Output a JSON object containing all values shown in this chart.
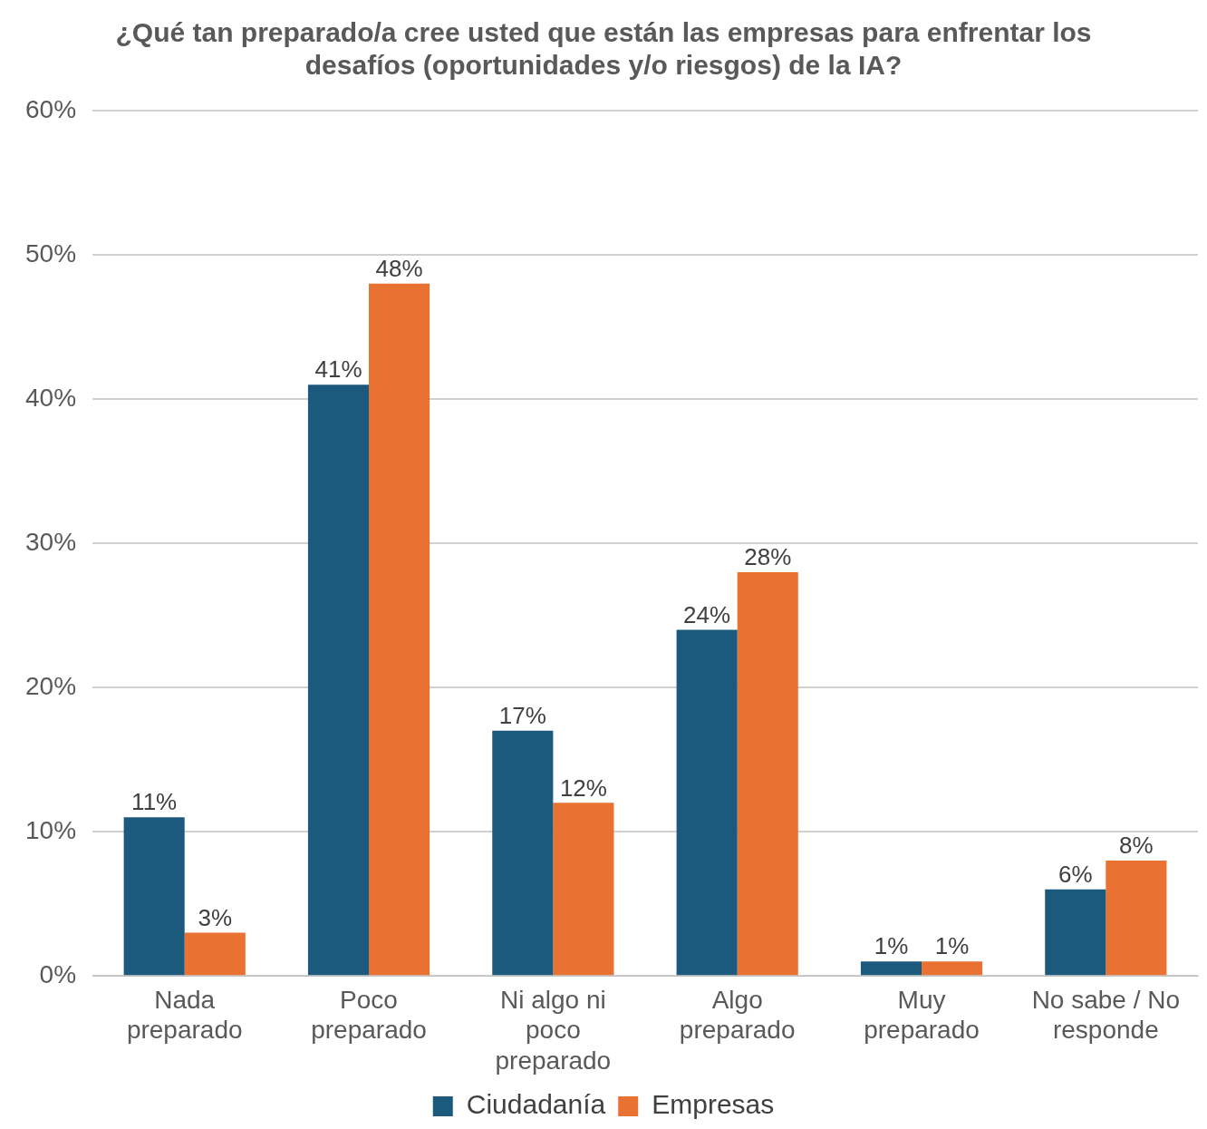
{
  "chart_data": {
    "type": "bar",
    "title": "¿Qué tan preparado/a cree usted que están las empresas para enfrentar los desafíos (oportunidades y/o riesgos) de la IA?",
    "categories": [
      "Nada preparado",
      "Poco preparado",
      "Ni algo ni poco preparado",
      "Algo preparado",
      "Muy preparado",
      "No sabe / No responde"
    ],
    "series": [
      {
        "name": "Ciudadanía",
        "color": "#1b5a7d",
        "values": [
          11,
          41,
          17,
          24,
          1,
          6
        ],
        "value_labels": [
          "11%",
          "41%",
          "17%",
          "24%",
          "1%",
          "6%"
        ]
      },
      {
        "name": "Empresas",
        "color": "#e97132",
        "values": [
          3,
          48,
          12,
          28,
          1,
          8
        ],
        "value_labels": [
          "3%",
          "48%",
          "12%",
          "28%",
          "1%",
          "8%"
        ]
      }
    ],
    "ylim": [
      0,
      60
    ],
    "yticks": [
      {
        "value": 0,
        "label": "0%"
      },
      {
        "value": 10,
        "label": "10%"
      },
      {
        "value": 20,
        "label": "20%"
      },
      {
        "value": 30,
        "label": "30%"
      },
      {
        "value": 40,
        "label": "40%"
      },
      {
        "value": 50,
        "label": "50%"
      },
      {
        "value": 60,
        "label": "60%"
      }
    ],
    "grid": "y",
    "legend": "bottom"
  }
}
